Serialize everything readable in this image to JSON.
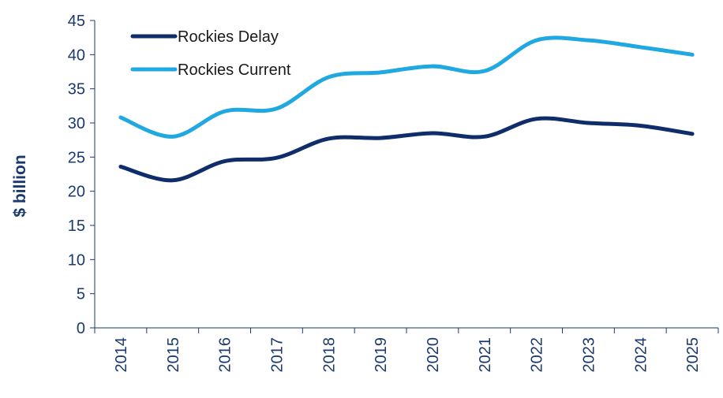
{
  "chart_data": {
    "type": "line",
    "title": "",
    "xlabel": "",
    "ylabel": "$ billion",
    "categories": [
      "2014",
      "2015",
      "2016",
      "2017",
      "2018",
      "2019",
      "2020",
      "2021",
      "2022",
      "2023",
      "2024",
      "2025"
    ],
    "ylim": [
      0,
      45
    ],
    "yticks": [
      0,
      5,
      10,
      15,
      20,
      25,
      30,
      35,
      40,
      45
    ],
    "grid": false,
    "legend_position": "top-left",
    "series": [
      {
        "name": "Rockies Delay",
        "color": "#0f2d6b",
        "values": [
          23.6,
          21.6,
          24.4,
          24.9,
          27.7,
          27.8,
          28.5,
          28.0,
          30.6,
          30.0,
          29.6,
          28.4
        ]
      },
      {
        "name": "Rockies Current",
        "color": "#20a8e0",
        "values": [
          30.8,
          28.0,
          31.7,
          32.1,
          36.7,
          37.4,
          38.3,
          37.6,
          42.1,
          42.1,
          41.1,
          40.0
        ]
      }
    ]
  }
}
